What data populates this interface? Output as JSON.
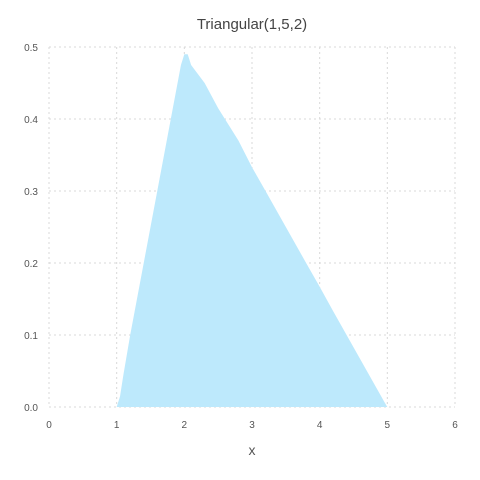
{
  "chart_data": {
    "type": "area",
    "title": "Triangular(1,5,2)",
    "xlabel": "x",
    "ylabel": "",
    "xlim": [
      0,
      6
    ],
    "ylim": [
      0,
      0.5
    ],
    "xticks": [
      0,
      1,
      2,
      3,
      4,
      5,
      6
    ],
    "yticks": [
      0.0,
      0.1,
      0.2,
      0.3,
      0.4,
      0.5
    ],
    "ytick_labels": [
      "0.0",
      "0.1",
      "0.2",
      "0.3",
      "0.4",
      "0.5"
    ],
    "grid": true,
    "fill_color": "#bde9fc",
    "series": [
      {
        "x": [
          1.0,
          1.05,
          1.1,
          1.2,
          1.4,
          1.6,
          1.8,
          1.95,
          2.0,
          2.05,
          2.1,
          2.3,
          2.5,
          2.8,
          3.0,
          3.2,
          3.5,
          3.8,
          4.0,
          4.2,
          4.5,
          4.8,
          4.95,
          5.0
        ],
        "values": [
          0.0,
          0.015,
          0.045,
          0.1,
          0.2,
          0.3,
          0.4,
          0.475,
          0.49,
          0.49,
          0.475,
          0.45,
          0.415,
          0.37,
          0.333,
          0.3,
          0.25,
          0.2,
          0.167,
          0.133,
          0.083,
          0.033,
          0.008,
          0.0
        ]
      }
    ]
  }
}
